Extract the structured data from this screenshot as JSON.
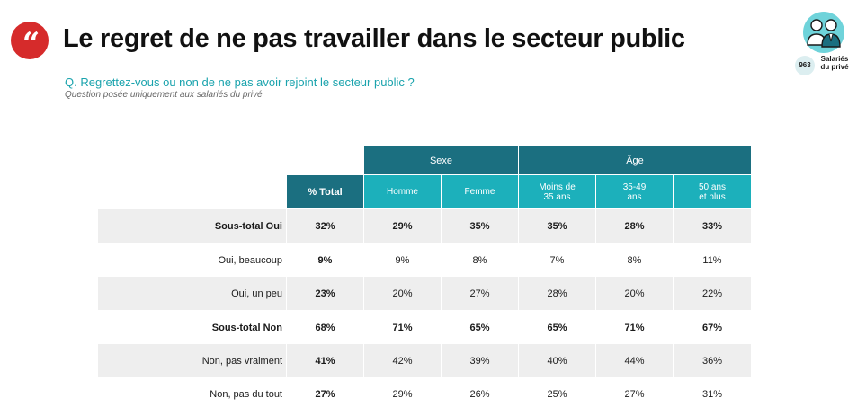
{
  "header": {
    "title": "Le regret de ne pas travailler dans le secteur public",
    "question": "Q. Regrettez-vous ou non de ne pas avoir rejoint le secteur public ?",
    "note": "Question posée uniquement aux salariés du privé",
    "quote_symbol": "“"
  },
  "sample": {
    "count": "963",
    "label_line1": "Salariés",
    "label_line2": "du privé",
    "icon": "people-icon"
  },
  "table": {
    "group_headers": {
      "sexe": "Sexe",
      "age": "Âge"
    },
    "column_headers": {
      "total": "% Total",
      "homme": "Homme",
      "femme": "Femme",
      "age1_l1": "Moins de",
      "age1_l2": "35 ans",
      "age2_l1": "35-49",
      "age2_l2": "ans",
      "age3_l1": "50 ans",
      "age3_l2": "et plus"
    },
    "rows": [
      {
        "label": "Sous-total Oui",
        "total": "32%",
        "homme": "29%",
        "femme": "35%",
        "age1": "35%",
        "age2": "28%",
        "age3": "33%"
      },
      {
        "label": "Oui, beaucoup",
        "total": "9%",
        "homme": "9%",
        "femme": "8%",
        "age1": "7%",
        "age2": "8%",
        "age3": "11%"
      },
      {
        "label": "Oui, un peu",
        "total": "23%",
        "homme": "20%",
        "femme": "27%",
        "age1": "28%",
        "age2": "20%",
        "age3": "22%"
      },
      {
        "label": "Sous-total Non",
        "total": "68%",
        "homme": "71%",
        "femme": "65%",
        "age1": "65%",
        "age2": "71%",
        "age3": "67%"
      },
      {
        "label": "Non, pas vraiment",
        "total": "41%",
        "homme": "42%",
        "femme": "39%",
        "age1": "40%",
        "age2": "44%",
        "age3": "36%"
      },
      {
        "label": "Non, pas du tout",
        "total": "27%",
        "homme": "29%",
        "femme": "26%",
        "age1": "25%",
        "age2": "27%",
        "age3": "31%"
      }
    ]
  },
  "colors": {
    "accent_red": "#d62b2b",
    "header_dark": "#1b6f80",
    "header_light": "#1cb0bb",
    "question_text": "#1aa3ad",
    "row_shade": "#eeeeee"
  }
}
